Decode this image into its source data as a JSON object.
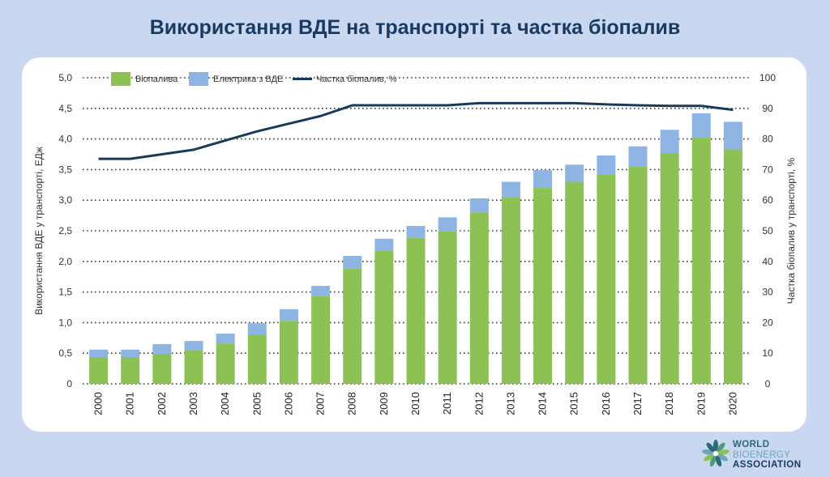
{
  "title": "Використання ВДЕ на транспорті та частка біопалив",
  "logo": {
    "line1": "WORLD",
    "line2": "BIOENERGY",
    "line3": "ASSOCIATION"
  },
  "colors": {
    "biofuels": "#8dc153",
    "electricity": "#8db4e2",
    "share_line": "#1a3a5a",
    "background": "#c9d8f0",
    "title": "#1a3a63"
  },
  "chart_data": {
    "type": "bar",
    "stacked": true,
    "title": "Використання ВДЕ на транспорті та частка біопалив",
    "categories": [
      "2000",
      "2001",
      "2002",
      "2003",
      "2004",
      "2005",
      "2006",
      "2007",
      "2008",
      "2009",
      "2010",
      "2011",
      "2012",
      "2013",
      "2014",
      "2015",
      "2016",
      "2017",
      "2018",
      "2019",
      "2020"
    ],
    "series": [
      {
        "name": "Біопалива",
        "type": "bar",
        "axis": "left",
        "values": [
          0.43,
          0.43,
          0.49,
          0.55,
          0.66,
          0.8,
          1.03,
          1.43,
          1.88,
          2.17,
          2.39,
          2.49,
          2.8,
          3.05,
          3.2,
          3.3,
          3.42,
          3.55,
          3.77,
          4.02,
          3.83
        ]
      },
      {
        "name": "Електрика з ВДЕ",
        "type": "bar",
        "axis": "left",
        "values": [
          0.13,
          0.13,
          0.16,
          0.15,
          0.16,
          0.19,
          0.19,
          0.17,
          0.21,
          0.2,
          0.19,
          0.23,
          0.23,
          0.25,
          0.29,
          0.28,
          0.31,
          0.33,
          0.38,
          0.4,
          0.45
        ]
      },
      {
        "name": "Частка біопалив, %",
        "type": "line",
        "axis": "right",
        "values": [
          73.5,
          73.5,
          75,
          76.5,
          79.5,
          82.5,
          85,
          87.5,
          91,
          91,
          91,
          91,
          91.7,
          91.7,
          91.7,
          91.7,
          91.3,
          91,
          90.8,
          90.8,
          89.5
        ]
      }
    ],
    "ylabel": "Використання ВДЕ у транспорті, ЕДж",
    "ylabel_right": "Частка біопалив у транспорті, %",
    "ylim": [
      0,
      5
    ],
    "ylim_right": [
      0,
      100
    ],
    "yticks": [
      "0",
      "0,5",
      "1,0",
      "1,5",
      "2,0",
      "2,5",
      "3,0",
      "3,5",
      "4,0",
      "4,5",
      "5,0"
    ],
    "yticks_right": [
      "0",
      "10",
      "20",
      "30",
      "40",
      "50",
      "60",
      "70",
      "80",
      "90",
      "100"
    ],
    "grid": "dotted horizontal",
    "legend_position": "top-left"
  }
}
